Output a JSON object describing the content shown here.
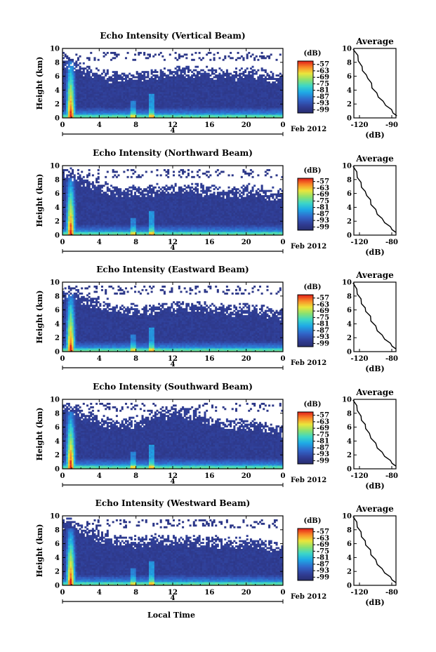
{
  "figure": {
    "date_label": "Feb 2012",
    "xlabel": "Local Time",
    "ylabel": "Height (km)",
    "colorbar_unit": "(dB)",
    "colorbar_ticks": [
      "-57",
      "-63",
      "-69",
      "-75",
      "-81",
      "-87",
      "-93",
      "-99"
    ],
    "avg_title": "Average",
    "avg_xlabel": "(dB)",
    "day_marker": "4",
    "x_tick_labels": [
      "0",
      "4",
      "8",
      "12",
      "16",
      "20",
      "0"
    ],
    "y_tick_labels": [
      "0",
      "2",
      "4",
      "6",
      "8",
      "10"
    ]
  },
  "chart_data": [
    {
      "type": "heatmap",
      "title": "Echo Intensity (Vertical Beam)",
      "xlabel": "Local Time",
      "ylabel": "Height (km)",
      "xlim": [
        0,
        24
      ],
      "ylim": [
        0,
        10
      ],
      "x_ticks": [
        0,
        4,
        8,
        12,
        16,
        20,
        24
      ],
      "y_ticks": [
        0,
        2,
        4,
        6,
        8,
        10
      ],
      "colorbar": {
        "label": "(dB)",
        "range": [
          -99,
          -57
        ],
        "ticks": [
          -57,
          -63,
          -69,
          -75,
          -81,
          -87,
          -93,
          -99
        ]
      },
      "echo_top_km": [
        8.6,
        8.2,
        7.6,
        7.1,
        6.7,
        6.6,
        6.5,
        6.5,
        6.6,
        6.8,
        6.9,
        7.0,
        7.2,
        7.3,
        7.3,
        7.2,
        7.0,
        6.9,
        6.8,
        6.9,
        7.1,
        6.9,
        6.5,
        6.3
      ]
    },
    {
      "type": "line",
      "title": "Average",
      "xlabel": "(dB)",
      "ylabel": "Height (km)",
      "xlim": [
        -125,
        -85
      ],
      "ylim": [
        0,
        10
      ],
      "x_tick_labels": [
        "-120",
        "-90"
      ],
      "y_ticks": [
        0,
        2,
        4,
        6,
        8,
        10
      ],
      "x": [
        -125,
        -122,
        -120,
        -118,
        -116,
        -114,
        -111,
        -109,
        -107,
        -104,
        -101,
        -98,
        -94,
        -90,
        -87,
        -85
      ],
      "y": [
        9.9,
        9.0,
        8.2,
        7.4,
        6.8,
        6.2,
        5.7,
        5.0,
        4.3,
        3.6,
        3.0,
        2.4,
        1.8,
        1.2,
        0.7,
        0.3
      ]
    },
    {
      "type": "heatmap",
      "title": "Echo Intensity (Northward Beam)",
      "xlabel": "Local Time",
      "ylabel": "Height (km)",
      "xlim": [
        0,
        24
      ],
      "ylim": [
        0,
        10
      ],
      "x_ticks": [
        0,
        4,
        8,
        12,
        16,
        20,
        24
      ],
      "y_ticks": [
        0,
        2,
        4,
        6,
        8,
        10
      ],
      "colorbar": {
        "label": "(dB)",
        "range": [
          -99,
          -57
        ],
        "ticks": [
          -57,
          -63,
          -69,
          -75,
          -81,
          -87,
          -93,
          -99
        ]
      },
      "echo_top_km": [
        9.4,
        9.0,
        8.4,
        7.9,
        7.4,
        7.1,
        6.9,
        6.8,
        6.8,
        6.9,
        7.0,
        7.1,
        7.2,
        7.2,
        7.2,
        7.1,
        6.9,
        6.8,
        6.8,
        6.9,
        7.0,
        6.8,
        6.5,
        6.3
      ]
    },
    {
      "type": "line",
      "title": "Average",
      "xlabel": "(dB)",
      "ylabel": "Height (km)",
      "xlim": [
        -125,
        -85
      ],
      "ylim": [
        0,
        10
      ],
      "x_tick_labels": [
        "-120",
        "-80"
      ],
      "y_ticks": [
        0,
        2,
        4,
        6,
        8,
        10
      ],
      "x": [
        -125,
        -123,
        -121,
        -119,
        -117,
        -115,
        -112,
        -110,
        -108,
        -105,
        -102,
        -99,
        -95,
        -91,
        -88,
        -86
      ],
      "y": [
        9.9,
        9.1,
        8.3,
        7.6,
        6.9,
        6.3,
        5.7,
        5.1,
        4.4,
        3.7,
        3.0,
        2.4,
        1.8,
        1.2,
        0.8,
        0.4
      ]
    },
    {
      "type": "heatmap",
      "title": "Echo Intensity (Eastward Beam)",
      "xlabel": "Local Time",
      "ylabel": "Height (km)",
      "xlim": [
        0,
        24
      ],
      "ylim": [
        0,
        10
      ],
      "x_ticks": [
        0,
        4,
        8,
        12,
        16,
        20,
        24
      ],
      "y_ticks": [
        0,
        2,
        4,
        6,
        8,
        10
      ],
      "colorbar": {
        "label": "(dB)",
        "range": [
          -99,
          -57
        ],
        "ticks": [
          -57,
          -63,
          -69,
          -75,
          -81,
          -87,
          -93,
          -99
        ]
      },
      "echo_top_km": [
        9.2,
        8.8,
        8.2,
        7.6,
        7.2,
        6.9,
        6.7,
        6.6,
        6.6,
        6.7,
        6.8,
        6.9,
        7.0,
        7.1,
        7.1,
        7.0,
        6.8,
        6.7,
        6.6,
        6.7,
        6.8,
        6.6,
        6.3,
        6.1
      ]
    },
    {
      "type": "line",
      "title": "Average",
      "xlabel": "(dB)",
      "ylabel": "Height (km)",
      "xlim": [
        -125,
        -85
      ],
      "ylim": [
        0,
        10
      ],
      "x_tick_labels": [
        "-120",
        "-80"
      ],
      "y_ticks": [
        0,
        2,
        4,
        6,
        8,
        10
      ],
      "x": [
        -125,
        -123,
        -121,
        -119,
        -117,
        -115,
        -113,
        -110,
        -108,
        -105,
        -102,
        -99,
        -95,
        -91,
        -88,
        -86
      ],
      "y": [
        9.9,
        9.0,
        8.3,
        7.6,
        6.9,
        6.3,
        5.8,
        5.1,
        4.4,
        3.7,
        3.0,
        2.4,
        1.8,
        1.2,
        0.8,
        0.4
      ]
    },
    {
      "type": "heatmap",
      "title": "Echo Intensity (Southward Beam)",
      "xlabel": "Local Time",
      "ylabel": "Height (km)",
      "xlim": [
        0,
        24
      ],
      "ylim": [
        0,
        10
      ],
      "x_ticks": [
        0,
        4,
        8,
        12,
        16,
        20,
        24
      ],
      "y_ticks": [
        0,
        2,
        4,
        6,
        8,
        10
      ],
      "colorbar": {
        "label": "(dB)",
        "range": [
          -99,
          -57
        ],
        "ticks": [
          -57,
          -63,
          -69,
          -75,
          -81,
          -87,
          -93,
          -99
        ]
      },
      "echo_top_km": [
        9.3,
        8.9,
        8.3,
        7.8,
        7.4,
        7.2,
        7.1,
        7.2,
        7.5,
        7.9,
        8.3,
        8.6,
        8.7,
        8.6,
        8.3,
        7.9,
        7.4,
        7.0,
        6.8,
        6.8,
        6.9,
        6.7,
        6.4,
        6.2
      ]
    },
    {
      "type": "line",
      "title": "Average",
      "xlabel": "(dB)",
      "ylabel": "Height (km)",
      "xlim": [
        -125,
        -85
      ],
      "ylim": [
        0,
        10
      ],
      "x_tick_labels": [
        "-120",
        "-80"
      ],
      "y_ticks": [
        0,
        2,
        4,
        6,
        8,
        10
      ],
      "x": [
        -125,
        -123,
        -121,
        -119,
        -117,
        -115,
        -113,
        -111,
        -108,
        -105,
        -102,
        -99,
        -95,
        -91,
        -88,
        -86
      ],
      "y": [
        9.9,
        9.1,
        8.4,
        7.6,
        7.0,
        6.4,
        5.8,
        5.1,
        4.4,
        3.7,
        3.0,
        2.4,
        1.8,
        1.2,
        0.8,
        0.4
      ]
    },
    {
      "type": "heatmap",
      "title": "Echo Intensity (Westward Beam)",
      "xlabel": "Local Time",
      "ylabel": "Height (km)",
      "xlim": [
        0,
        24
      ],
      "ylim": [
        0,
        10
      ],
      "x_ticks": [
        0,
        4,
        8,
        12,
        16,
        20,
        24
      ],
      "y_ticks": [
        0,
        2,
        4,
        6,
        8,
        10
      ],
      "colorbar": {
        "label": "(dB)",
        "range": [
          -99,
          -57
        ],
        "ticks": [
          -57,
          -63,
          -69,
          -75,
          -81,
          -87,
          -93,
          -99
        ]
      },
      "echo_top_km": [
        9.5,
        9.1,
        8.5,
        8.0,
        7.5,
        7.2,
        7.0,
        6.9,
        6.9,
        7.0,
        7.1,
        7.1,
        7.2,
        7.1,
        7.0,
        6.9,
        6.7,
        6.6,
        6.6,
        6.7,
        6.8,
        6.6,
        6.3,
        6.1
      ]
    },
    {
      "type": "line",
      "title": "Average",
      "xlabel": "(dB)",
      "ylabel": "Height (km)",
      "xlim": [
        -125,
        -85
      ],
      "ylim": [
        0,
        10
      ],
      "x_tick_labels": [
        "-120",
        "-80"
      ],
      "y_ticks": [
        0,
        2,
        4,
        6,
        8,
        10
      ],
      "x": [
        -125,
        -123,
        -121,
        -119,
        -117,
        -115,
        -113,
        -110,
        -108,
        -105,
        -102,
        -99,
        -95,
        -91,
        -88,
        -86
      ],
      "y": [
        9.9,
        9.1,
        8.4,
        7.7,
        7.0,
        6.4,
        5.8,
        5.1,
        4.4,
        3.7,
        3.0,
        2.4,
        1.8,
        1.2,
        0.8,
        0.4
      ]
    }
  ]
}
